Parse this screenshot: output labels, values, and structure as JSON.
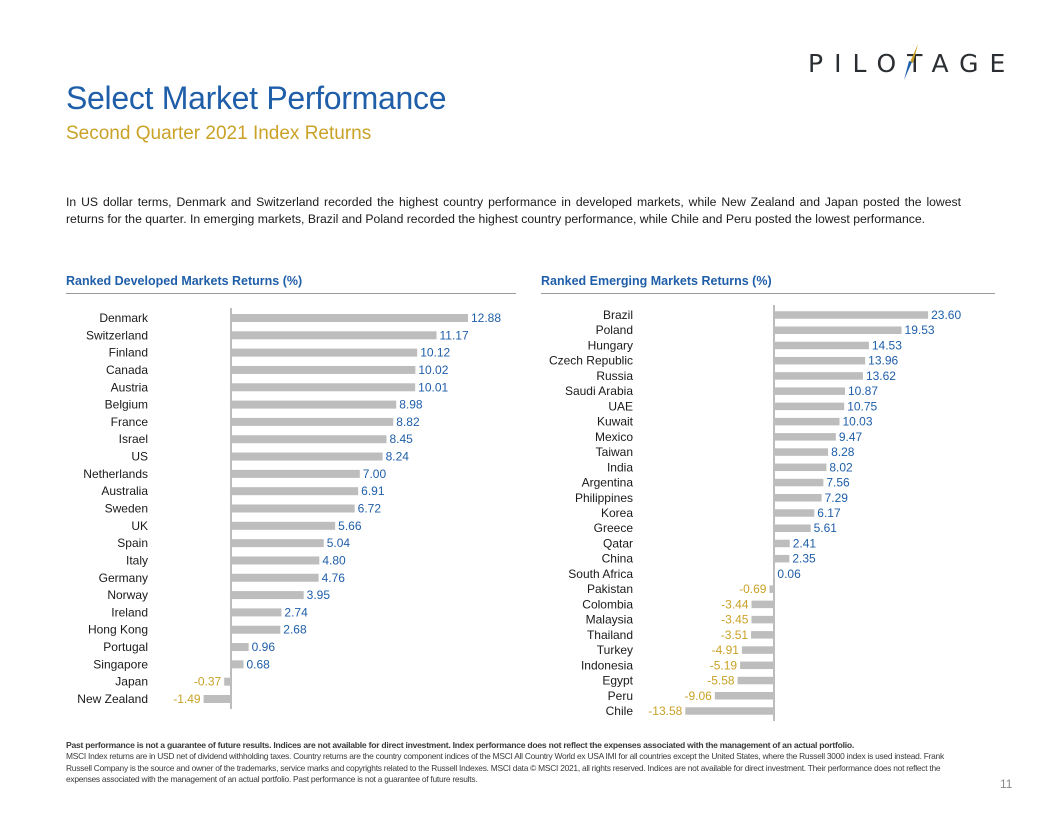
{
  "brand": {
    "logo_text": "PILOTAGE",
    "accent_color": "#c9a227",
    "primary_color": "#1f5ea8"
  },
  "header": {
    "title": "Select Market Performance",
    "subtitle": "Second Quarter 2021 Index Returns"
  },
  "intro": "In US dollar terms, Denmark and Switzerland recorded the highest country performance in developed markets, while New Zealand and Japan posted the lowest returns for the quarter. In emerging markets, Brazil and Poland recorded the highest country performance, while Chile and Peru posted the lowest performance.",
  "chart_data": [
    {
      "type": "bar",
      "orientation": "horizontal",
      "title": "Ranked Developed Markets Returns (%)",
      "categories": [
        "Denmark",
        "Switzerland",
        "Finland",
        "Canada",
        "Austria",
        "Belgium",
        "France",
        "Israel",
        "US",
        "Netherlands",
        "Australia",
        "Sweden",
        "UK",
        "Spain",
        "Italy",
        "Germany",
        "Norway",
        "Ireland",
        "Hong Kong",
        "Portugal",
        "Singapore",
        "Japan",
        "New Zealand"
      ],
      "values": [
        12.88,
        11.17,
        10.12,
        10.02,
        10.01,
        8.98,
        8.82,
        8.45,
        8.24,
        7.0,
        6.91,
        6.72,
        5.66,
        5.04,
        4.8,
        4.76,
        3.95,
        2.74,
        2.68,
        0.96,
        0.68,
        -0.37,
        -1.49
      ],
      "labels": [
        "12.88",
        "11.17",
        "10.12",
        "10.02",
        "10.01",
        "8.98",
        "8.82",
        "8.45",
        "8.24",
        "7.00",
        "6.91",
        "6.72",
        "5.66",
        "5.04",
        "4.80",
        "4.76",
        "3.95",
        "2.74",
        "2.68",
        "0.96",
        "0.68",
        "-0.37",
        "-1.49"
      ],
      "colors": {
        "bar": "#bdbdbd",
        "positive_label": "#1f5ea8",
        "negative_label": "#c9a227"
      },
      "grid": false,
      "legend": "none"
    },
    {
      "type": "bar",
      "orientation": "horizontal",
      "title": "Ranked Emerging Markets Returns (%)",
      "categories": [
        "Brazil",
        "Poland",
        "Hungary",
        "Czech Republic",
        "Russia",
        "Saudi Arabia",
        "UAE",
        "Kuwait",
        "Mexico",
        "Taiwan",
        "India",
        "Argentina",
        "Philippines",
        "Korea",
        "Greece",
        "Qatar",
        "China",
        "South Africa",
        "Pakistan",
        "Colombia",
        "Malaysia",
        "Thailand",
        "Turkey",
        "Indonesia",
        "Egypt",
        "Peru",
        "Chile"
      ],
      "values": [
        23.6,
        19.53,
        14.53,
        13.96,
        13.62,
        10.87,
        10.75,
        10.03,
        9.47,
        8.28,
        8.02,
        7.56,
        7.29,
        6.17,
        5.61,
        2.41,
        2.35,
        0.06,
        -0.69,
        -3.44,
        -3.45,
        -3.51,
        -4.91,
        -5.19,
        -5.58,
        -9.06,
        -13.58
      ],
      "labels": [
        "23.60",
        "19.53",
        "14.53",
        "13.96",
        "13.62",
        "10.87",
        "10.75",
        "10.03",
        "9.47",
        "8.28",
        "8.02",
        "7.56",
        "7.29",
        "6.17",
        "5.61",
        "2.41",
        "2.35",
        "0.06",
        "-0.69",
        "-3.44",
        "-3.45",
        "-3.51",
        "-4.91",
        "-5.19",
        "-5.58",
        "-9.06",
        "-13.58"
      ],
      "colors": {
        "bar": "#bdbdbd",
        "positive_label": "#1f5ea8",
        "negative_label": "#c9a227"
      },
      "grid": false,
      "legend": "none"
    }
  ],
  "footer": {
    "disclaimer_bold": "Past performance is not a guarantee of future results. Indices are not available for direct investment. Index performance does not reflect the expenses associated with the management of an actual portfolio.",
    "disclaimer": "MSCI Index returns are in USD net of dividend withholding taxes. Country returns are the country component indices of the MSCI All Country World ex USA IMI for all countries except the United States, where the Russell 3000 index is used instead. Frank Russell Company is the source and owner of the trademarks, service marks and copyrights related to the Russell Indexes. MSCI data © MSCI 2021, all rights reserved. Indices are not available for direct investment. Their performance does not reflect the expenses associated with the management of an actual portfolio. Past performance is not a guarantee of future results.",
    "page_number": "11"
  }
}
